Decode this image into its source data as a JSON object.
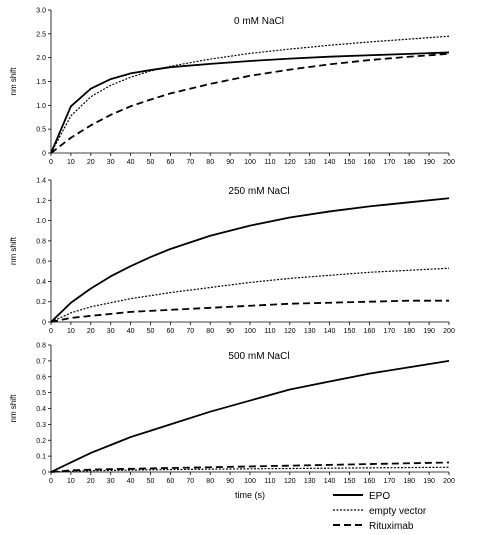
{
  "chart_data": [
    {
      "type": "line",
      "title": "0 mM NaCl",
      "xlabel": "",
      "ylabel": "nm shift",
      "xlim": [
        0,
        200
      ],
      "ylim": [
        0,
        3.0
      ],
      "x_ticks": [
        "0",
        "10",
        "20",
        "30",
        "40",
        "50",
        "60",
        "70",
        "80",
        "90",
        "100",
        "110",
        "120",
        "130",
        "140",
        "150",
        "160",
        "170",
        "180",
        "190",
        "200"
      ],
      "y_ticks": [
        "0",
        "0.5",
        "1.0",
        "1.5",
        "2.0",
        "2.5",
        "3.0"
      ],
      "x": [
        0,
        10,
        20,
        30,
        40,
        50,
        60,
        80,
        100,
        120,
        140,
        160,
        180,
        200
      ],
      "series": [
        {
          "style": "solid",
          "values": [
            0,
            0.98,
            1.35,
            1.55,
            1.67,
            1.74,
            1.8,
            1.87,
            1.93,
            1.98,
            2.02,
            2.05,
            2.08,
            2.11
          ]
        },
        {
          "style": "dotted",
          "values": [
            0,
            0.78,
            1.18,
            1.42,
            1.59,
            1.72,
            1.82,
            1.97,
            2.09,
            2.18,
            2.26,
            2.33,
            2.39,
            2.45
          ]
        },
        {
          "style": "dashed",
          "values": [
            0,
            0.32,
            0.58,
            0.8,
            0.98,
            1.12,
            1.25,
            1.45,
            1.62,
            1.75,
            1.86,
            1.95,
            2.02,
            2.08
          ]
        }
      ]
    },
    {
      "type": "line",
      "title": "250 mM NaCl",
      "xlabel": "",
      "ylabel": "nm shift",
      "xlim": [
        0,
        200
      ],
      "ylim": [
        0,
        1.4
      ],
      "x_ticks": [
        "0",
        "10",
        "20",
        "30",
        "40",
        "50",
        "60",
        "70",
        "80",
        "90",
        "100",
        "110",
        "120",
        "130",
        "140",
        "150",
        "160",
        "170",
        "180",
        "190",
        "200"
      ],
      "y_ticks": [
        "0",
        "0.2",
        "0.4",
        "0.6",
        "0.8",
        "1.0",
        "1.2",
        "1.4"
      ],
      "x": [
        0,
        10,
        20,
        30,
        40,
        50,
        60,
        80,
        100,
        120,
        140,
        160,
        180,
        200
      ],
      "series": [
        {
          "style": "solid",
          "values": [
            0,
            0.19,
            0.33,
            0.45,
            0.55,
            0.64,
            0.72,
            0.85,
            0.95,
            1.03,
            1.09,
            1.14,
            1.18,
            1.22
          ]
        },
        {
          "style": "dotted",
          "values": [
            0,
            0.09,
            0.15,
            0.19,
            0.23,
            0.26,
            0.29,
            0.34,
            0.39,
            0.43,
            0.46,
            0.49,
            0.51,
            0.53
          ]
        },
        {
          "style": "dashed",
          "values": [
            0,
            0.04,
            0.06,
            0.08,
            0.1,
            0.11,
            0.12,
            0.14,
            0.16,
            0.18,
            0.19,
            0.2,
            0.21,
            0.21
          ]
        }
      ]
    },
    {
      "type": "line",
      "title": "500 mM NaCl",
      "xlabel": "time (s)",
      "ylabel": "nm shift",
      "xlim": [
        0,
        200
      ],
      "ylim": [
        0,
        0.8
      ],
      "x_ticks": [
        "0",
        "10",
        "20",
        "30",
        "40",
        "50",
        "60",
        "70",
        "80",
        "90",
        "100",
        "110",
        "120",
        "130",
        "140",
        "150",
        "160",
        "170",
        "180",
        "190",
        "200"
      ],
      "y_ticks": [
        "0",
        "0.1",
        "0.2",
        "0.3",
        "0.4",
        "0.5",
        "0.6",
        "0.7",
        "0.8"
      ],
      "x": [
        0,
        10,
        20,
        30,
        40,
        50,
        60,
        80,
        100,
        120,
        140,
        160,
        180,
        200
      ],
      "series": [
        {
          "style": "solid",
          "values": [
            0,
            0.06,
            0.12,
            0.17,
            0.22,
            0.26,
            0.3,
            0.38,
            0.45,
            0.52,
            0.57,
            0.62,
            0.66,
            0.7
          ]
        },
        {
          "style": "dotted",
          "values": [
            0,
            0.005,
            0.008,
            0.01,
            0.012,
            0.014,
            0.015,
            0.018,
            0.02,
            0.022,
            0.024,
            0.026,
            0.028,
            0.03
          ]
        },
        {
          "style": "dashed",
          "values": [
            0,
            0.01,
            0.015,
            0.018,
            0.02,
            0.023,
            0.025,
            0.03,
            0.035,
            0.04,
            0.045,
            0.05,
            0.055,
            0.06
          ]
        }
      ]
    }
  ],
  "legend": {
    "placement": "bottom-right",
    "items": [
      {
        "label": "EPO",
        "style": "solid"
      },
      {
        "label": "empty vector",
        "style": "dotted"
      },
      {
        "label": "Rituximab",
        "style": "dashed"
      }
    ]
  }
}
